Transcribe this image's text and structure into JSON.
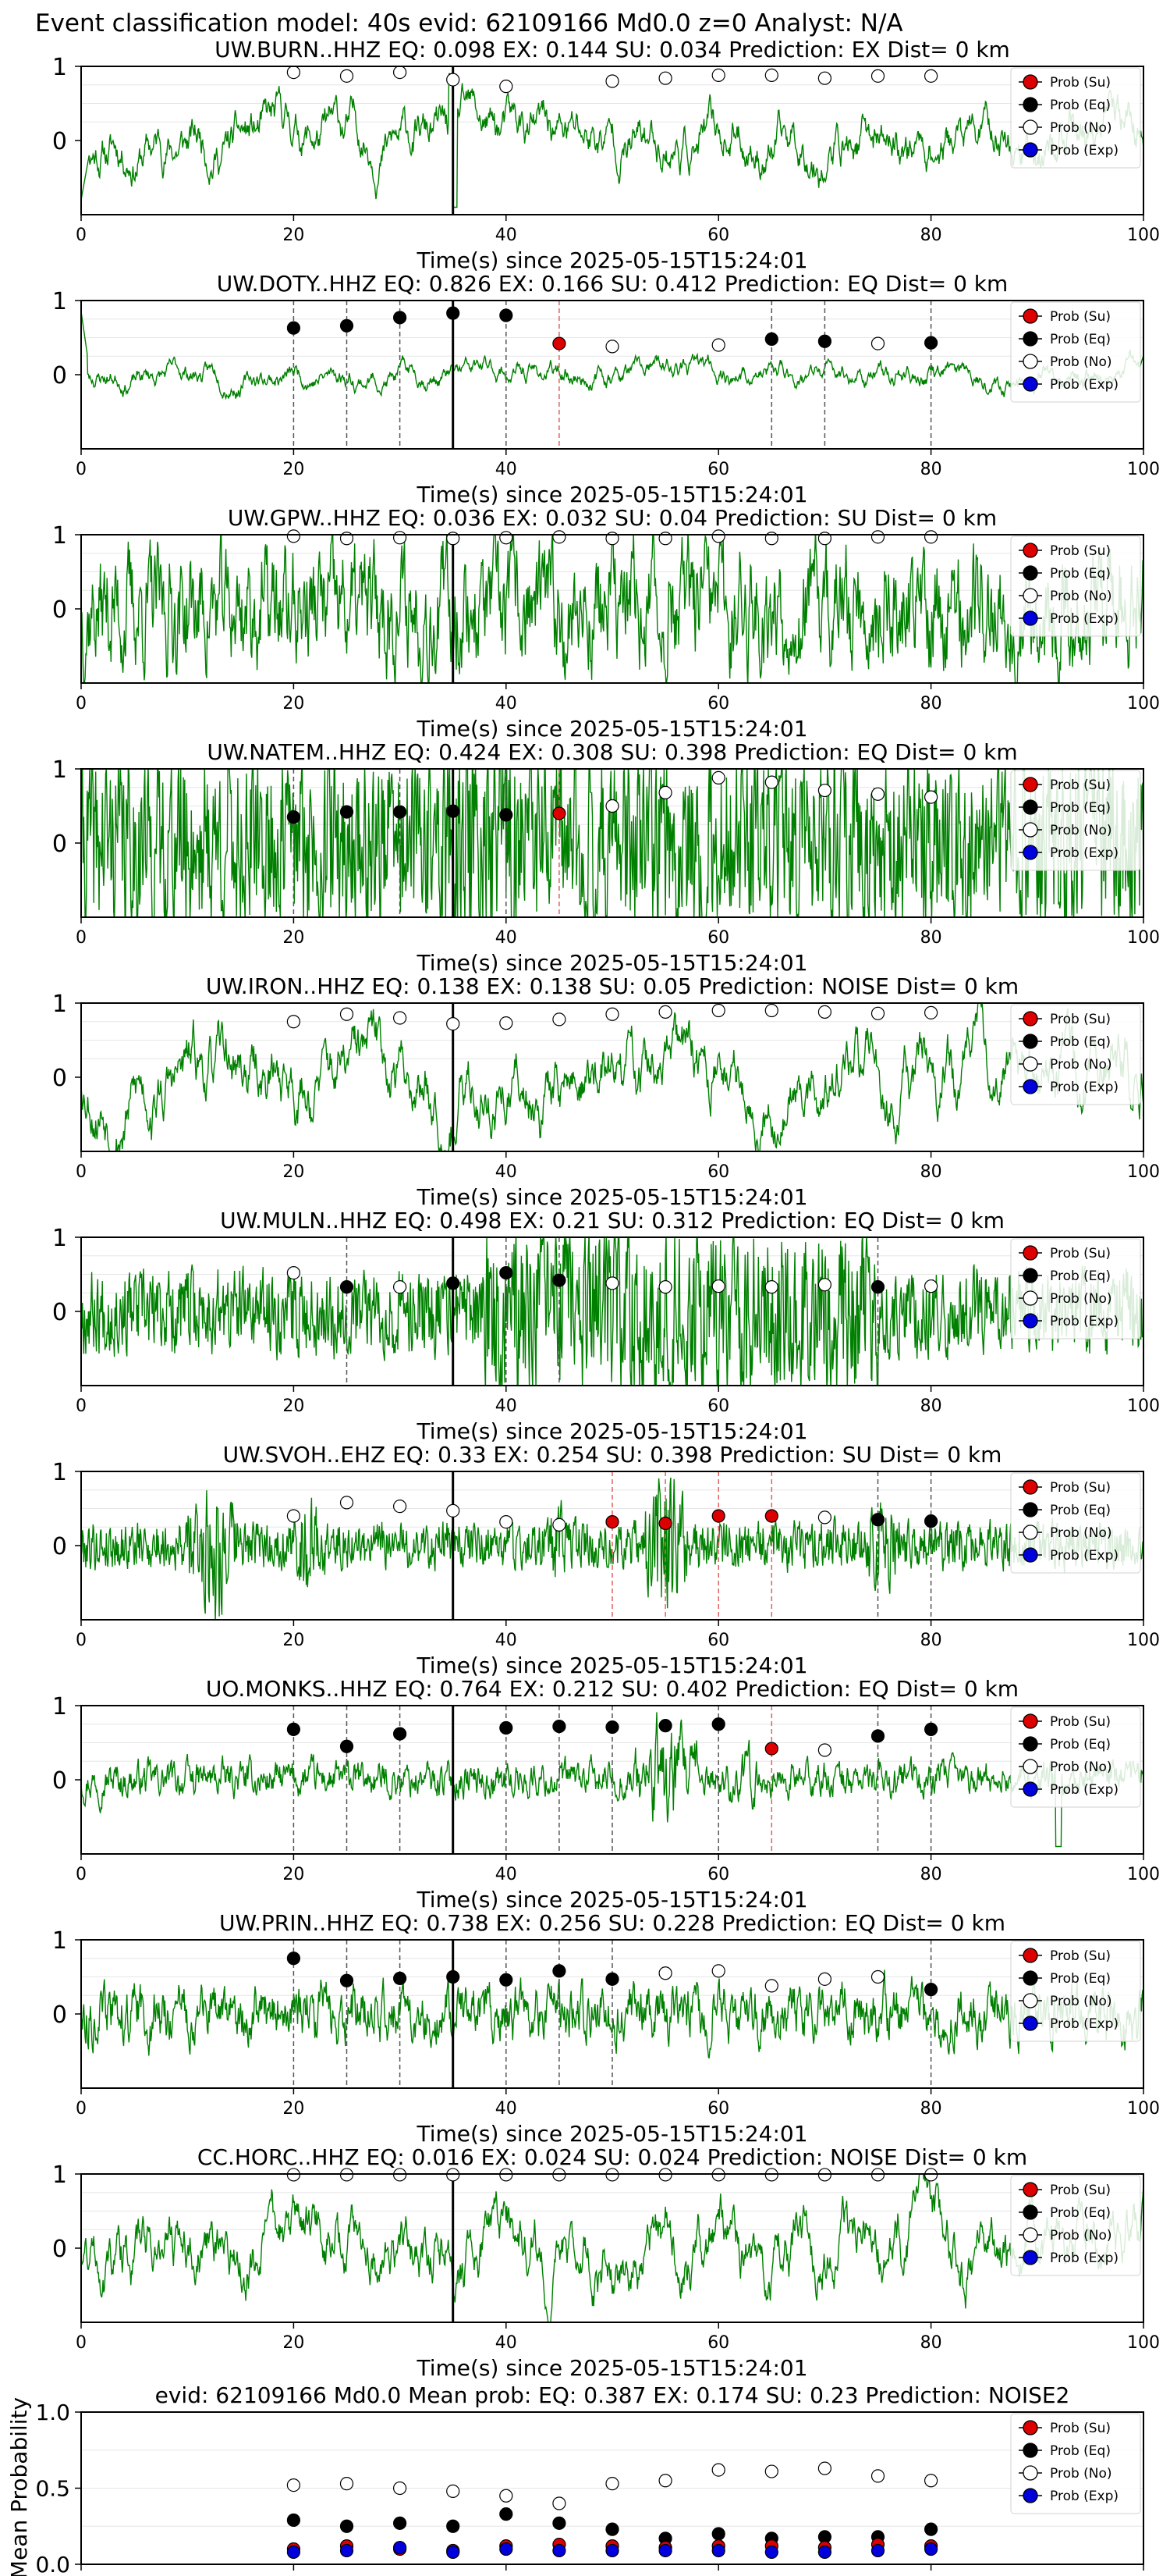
{
  "suptitle": "Event classification model: 40s evid: 62109166 Md0.0 z=0 Analyst: N/A",
  "common": {
    "xlabel": "Time(s) since 2025-05-15T15:24:01",
    "xlim": [
      0,
      100
    ],
    "xticks": [
      0,
      20,
      40,
      60,
      80,
      100
    ],
    "yticks": [
      0,
      1
    ],
    "ylim": [
      -1,
      1
    ],
    "origin_time": 35,
    "legend": {
      "placement": "top-right",
      "entries": [
        {
          "key": "su",
          "label": "Prob (Su)",
          "fill": "#dd0000"
        },
        {
          "key": "eq",
          "label": "Prob (Eq)",
          "fill": "#000000"
        },
        {
          "key": "no",
          "label": "Prob (No)",
          "fill": "#ffffff"
        },
        {
          "key": "exp",
          "label": "Prob (Exp)",
          "fill": "#0000dd"
        }
      ]
    },
    "colors": {
      "waveform": "#008000",
      "eq_line": "#555555",
      "su_line": "#e06060",
      "origin_line": "#000000"
    }
  },
  "window_times": [
    20,
    25,
    30,
    35,
    40,
    45,
    50,
    55,
    60,
    65,
    70,
    75,
    80
  ],
  "chart_data": [
    {
      "type": "line",
      "title": "UW.BURN..HHZ   EQ: 0.098  EX: 0.144  SU: 0.034   Prediction: EX    Dist= 0 km",
      "waveform": {
        "amp": 0.55,
        "style": "low",
        "seed": 11,
        "onset_spike": {
          "t": 35,
          "amp": 0.9
        },
        "initial_dip": true
      },
      "markers": [
        {
          "t": 20,
          "p": 0.92,
          "cls": "no"
        },
        {
          "t": 25,
          "p": 0.87,
          "cls": "no"
        },
        {
          "t": 30,
          "p": 0.92,
          "cls": "no"
        },
        {
          "t": 35,
          "p": 0.82,
          "cls": "no"
        },
        {
          "t": 40,
          "p": 0.73,
          "cls": "no"
        },
        {
          "t": 50,
          "p": 0.8,
          "cls": "no"
        },
        {
          "t": 55,
          "p": 0.84,
          "cls": "no"
        },
        {
          "t": 60,
          "p": 0.88,
          "cls": "no"
        },
        {
          "t": 65,
          "p": 0.88,
          "cls": "no"
        },
        {
          "t": 70,
          "p": 0.84,
          "cls": "no"
        },
        {
          "t": 75,
          "p": 0.87,
          "cls": "no"
        },
        {
          "t": 80,
          "p": 0.87,
          "cls": "no"
        }
      ],
      "eq_lines": [],
      "su_lines": []
    },
    {
      "type": "line",
      "title": "UW.DOTY..HHZ   EQ: 0.826  EX: 0.166  SU: 0.412   Prediction: EQ    Dist= 0 km",
      "waveform": {
        "amp": 0.25,
        "style": "low",
        "seed": 23,
        "start_spike": true
      },
      "markers": [
        {
          "t": 20,
          "p": 0.63,
          "cls": "eq"
        },
        {
          "t": 25,
          "p": 0.66,
          "cls": "eq"
        },
        {
          "t": 30,
          "p": 0.77,
          "cls": "eq"
        },
        {
          "t": 35,
          "p": 0.83,
          "cls": "eq"
        },
        {
          "t": 40,
          "p": 0.8,
          "cls": "eq"
        },
        {
          "t": 45,
          "p": 0.42,
          "cls": "su"
        },
        {
          "t": 50,
          "p": 0.38,
          "cls": "no"
        },
        {
          "t": 60,
          "p": 0.4,
          "cls": "no"
        },
        {
          "t": 65,
          "p": 0.48,
          "cls": "eq"
        },
        {
          "t": 70,
          "p": 0.45,
          "cls": "eq"
        },
        {
          "t": 75,
          "p": 0.42,
          "cls": "no"
        },
        {
          "t": 80,
          "p": 0.43,
          "cls": "eq"
        }
      ],
      "eq_lines": [
        20,
        25,
        30,
        40,
        65,
        70,
        80
      ],
      "su_lines": [
        45
      ]
    },
    {
      "type": "line",
      "title": "UW.GPW..HHZ   EQ: 0.036  EX: 0.032  SU: 0.04   Prediction: SU    Dist= 0 km",
      "waveform": {
        "amp": 0.85,
        "style": "mid",
        "seed": 37
      },
      "markers": [
        {
          "t": 20,
          "p": 0.98,
          "cls": "no"
        },
        {
          "t": 25,
          "p": 0.95,
          "cls": "no"
        },
        {
          "t": 30,
          "p": 0.96,
          "cls": "no"
        },
        {
          "t": 35,
          "p": 0.95,
          "cls": "no"
        },
        {
          "t": 40,
          "p": 0.96,
          "cls": "no"
        },
        {
          "t": 45,
          "p": 0.97,
          "cls": "no"
        },
        {
          "t": 50,
          "p": 0.95,
          "cls": "no"
        },
        {
          "t": 55,
          "p": 0.95,
          "cls": "no"
        },
        {
          "t": 60,
          "p": 0.98,
          "cls": "no"
        },
        {
          "t": 65,
          "p": 0.95,
          "cls": "no"
        },
        {
          "t": 70,
          "p": 0.95,
          "cls": "no"
        },
        {
          "t": 75,
          "p": 0.97,
          "cls": "no"
        },
        {
          "t": 80,
          "p": 0.97,
          "cls": "no"
        }
      ],
      "eq_lines": [],
      "su_lines": []
    },
    {
      "type": "line",
      "title": "UW.NATEM..HHZ   EQ: 0.424  EX: 0.308  SU: 0.398   Prediction: EQ    Dist= 0 km",
      "waveform": {
        "amp": 0.75,
        "style": "high",
        "seed": 41,
        "burst": {
          "t0": 34,
          "t1": 42,
          "gain": 1.3
        }
      },
      "markers": [
        {
          "t": 20,
          "p": 0.35,
          "cls": "eq"
        },
        {
          "t": 25,
          "p": 0.42,
          "cls": "eq"
        },
        {
          "t": 30,
          "p": 0.42,
          "cls": "eq"
        },
        {
          "t": 35,
          "p": 0.43,
          "cls": "eq"
        },
        {
          "t": 40,
          "p": 0.38,
          "cls": "eq"
        },
        {
          "t": 45,
          "p": 0.4,
          "cls": "su"
        },
        {
          "t": 50,
          "p": 0.5,
          "cls": "no"
        },
        {
          "t": 55,
          "p": 0.68,
          "cls": "no"
        },
        {
          "t": 60,
          "p": 0.88,
          "cls": "no"
        },
        {
          "t": 65,
          "p": 0.82,
          "cls": "no"
        },
        {
          "t": 70,
          "p": 0.71,
          "cls": "no"
        },
        {
          "t": 75,
          "p": 0.66,
          "cls": "no"
        },
        {
          "t": 80,
          "p": 0.62,
          "cls": "no"
        }
      ],
      "eq_lines": [
        20,
        30,
        40
      ],
      "su_lines": [
        45
      ]
    },
    {
      "type": "line",
      "title": "UW.IRON..HHZ   EQ: 0.138  EX: 0.138  SU: 0.05   Prediction: NOISE    Dist= 0 km",
      "waveform": {
        "amp": 0.8,
        "style": "low",
        "seed": 53
      },
      "markers": [
        {
          "t": 20,
          "p": 0.75,
          "cls": "no"
        },
        {
          "t": 25,
          "p": 0.85,
          "cls": "no"
        },
        {
          "t": 30,
          "p": 0.8,
          "cls": "no"
        },
        {
          "t": 35,
          "p": 0.72,
          "cls": "no"
        },
        {
          "t": 40,
          "p": 0.73,
          "cls": "no"
        },
        {
          "t": 45,
          "p": 0.78,
          "cls": "no"
        },
        {
          "t": 50,
          "p": 0.85,
          "cls": "no"
        },
        {
          "t": 55,
          "p": 0.88,
          "cls": "no"
        },
        {
          "t": 60,
          "p": 0.9,
          "cls": "no"
        },
        {
          "t": 65,
          "p": 0.9,
          "cls": "no"
        },
        {
          "t": 70,
          "p": 0.88,
          "cls": "no"
        },
        {
          "t": 75,
          "p": 0.86,
          "cls": "no"
        },
        {
          "t": 80,
          "p": 0.87,
          "cls": "no"
        }
      ],
      "eq_lines": [],
      "su_lines": []
    },
    {
      "type": "line",
      "title": "UW.MULN..HHZ   EQ: 0.498  EX: 0.21  SU: 0.312   Prediction: EQ    Dist= 0 km",
      "waveform": {
        "amp": 0.35,
        "style": "high",
        "seed": 67,
        "burst": {
          "t0": 38,
          "t1": 75,
          "gain": 2.0
        }
      },
      "markers": [
        {
          "t": 20,
          "p": 0.52,
          "cls": "no"
        },
        {
          "t": 25,
          "p": 0.33,
          "cls": "eq"
        },
        {
          "t": 30,
          "p": 0.33,
          "cls": "no"
        },
        {
          "t": 35,
          "p": 0.38,
          "cls": "eq"
        },
        {
          "t": 40,
          "p": 0.52,
          "cls": "eq"
        },
        {
          "t": 45,
          "p": 0.42,
          "cls": "eq"
        },
        {
          "t": 50,
          "p": 0.38,
          "cls": "no"
        },
        {
          "t": 55,
          "p": 0.33,
          "cls": "no"
        },
        {
          "t": 60,
          "p": 0.34,
          "cls": "no"
        },
        {
          "t": 65,
          "p": 0.33,
          "cls": "no"
        },
        {
          "t": 70,
          "p": 0.36,
          "cls": "no"
        },
        {
          "t": 75,
          "p": 0.33,
          "cls": "eq"
        },
        {
          "t": 80,
          "p": 0.34,
          "cls": "no"
        }
      ],
      "eq_lines": [
        25,
        40,
        45,
        75
      ],
      "su_lines": []
    },
    {
      "type": "line",
      "title": "UW.SVOH..EHZ   EQ: 0.33  EX: 0.254  SU: 0.398   Prediction: SU    Dist= 0 km",
      "waveform": {
        "amp": 0.2,
        "style": "high",
        "seed": 79,
        "bursts": [
          {
            "t0": 10,
            "t1": 15,
            "gain": 3.5
          },
          {
            "t0": 20,
            "t1": 23,
            "gain": 2.2
          },
          {
            "t0": 53,
            "t1": 57,
            "gain": 4.2
          },
          {
            "t0": 74,
            "t1": 77,
            "gain": 2.5
          },
          {
            "t0": 44,
            "t1": 46,
            "gain": 2.0
          }
        ]
      },
      "markers": [
        {
          "t": 20,
          "p": 0.4,
          "cls": "no"
        },
        {
          "t": 25,
          "p": 0.58,
          "cls": "no"
        },
        {
          "t": 30,
          "p": 0.53,
          "cls": "no"
        },
        {
          "t": 35,
          "p": 0.47,
          "cls": "no"
        },
        {
          "t": 40,
          "p": 0.32,
          "cls": "no"
        },
        {
          "t": 45,
          "p": 0.28,
          "cls": "no"
        },
        {
          "t": 50,
          "p": 0.32,
          "cls": "su"
        },
        {
          "t": 55,
          "p": 0.3,
          "cls": "su"
        },
        {
          "t": 60,
          "p": 0.4,
          "cls": "su"
        },
        {
          "t": 65,
          "p": 0.4,
          "cls": "su"
        },
        {
          "t": 70,
          "p": 0.38,
          "cls": "no"
        },
        {
          "t": 75,
          "p": 0.35,
          "cls": "eq"
        },
        {
          "t": 80,
          "p": 0.33,
          "cls": "eq"
        }
      ],
      "eq_lines": [
        75,
        80
      ],
      "su_lines": [
        50,
        55,
        60,
        65
      ]
    },
    {
      "type": "line",
      "title": "UO.MONKS..HHZ   EQ: 0.764  EX: 0.212  SU: 0.402   Prediction: EQ    Dist= 0 km",
      "waveform": {
        "amp": 0.25,
        "style": "mid",
        "seed": 97,
        "bursts": [
          {
            "t0": 52,
            "t1": 58,
            "gain": 3.8
          },
          {
            "t0": 61,
            "t1": 64,
            "gain": 1.6
          }
        ],
        "tail_dip": {
          "t": 92
        }
      },
      "markers": [
        {
          "t": 20,
          "p": 0.68,
          "cls": "eq"
        },
        {
          "t": 25,
          "p": 0.45,
          "cls": "eq"
        },
        {
          "t": 30,
          "p": 0.62,
          "cls": "eq"
        },
        {
          "t": 40,
          "p": 0.7,
          "cls": "eq"
        },
        {
          "t": 45,
          "p": 0.72,
          "cls": "eq"
        },
        {
          "t": 50,
          "p": 0.71,
          "cls": "eq"
        },
        {
          "t": 55,
          "p": 0.73,
          "cls": "eq"
        },
        {
          "t": 60,
          "p": 0.75,
          "cls": "eq"
        },
        {
          "t": 65,
          "p": 0.42,
          "cls": "su"
        },
        {
          "t": 70,
          "p": 0.4,
          "cls": "no"
        },
        {
          "t": 75,
          "p": 0.59,
          "cls": "eq"
        },
        {
          "t": 80,
          "p": 0.68,
          "cls": "eq"
        }
      ],
      "eq_lines": [
        20,
        25,
        30,
        40,
        45,
        50,
        60,
        75,
        80
      ],
      "su_lines": [
        65
      ]
    },
    {
      "type": "line",
      "title": "UW.PRIN..HHZ   EQ: 0.738  EX: 0.256  SU: 0.228   Prediction: EQ    Dist= 0 km",
      "waveform": {
        "amp": 0.4,
        "style": "mid",
        "seed": 113
      },
      "markers": [
        {
          "t": 20,
          "p": 0.75,
          "cls": "eq"
        },
        {
          "t": 25,
          "p": 0.45,
          "cls": "eq"
        },
        {
          "t": 30,
          "p": 0.48,
          "cls": "eq"
        },
        {
          "t": 35,
          "p": 0.5,
          "cls": "eq"
        },
        {
          "t": 40,
          "p": 0.46,
          "cls": "eq"
        },
        {
          "t": 45,
          "p": 0.58,
          "cls": "eq"
        },
        {
          "t": 50,
          "p": 0.47,
          "cls": "eq"
        },
        {
          "t": 55,
          "p": 0.55,
          "cls": "no"
        },
        {
          "t": 60,
          "p": 0.58,
          "cls": "no"
        },
        {
          "t": 65,
          "p": 0.38,
          "cls": "no"
        },
        {
          "t": 70,
          "p": 0.47,
          "cls": "no"
        },
        {
          "t": 75,
          "p": 0.5,
          "cls": "no"
        },
        {
          "t": 80,
          "p": 0.33,
          "cls": "eq"
        }
      ],
      "eq_lines": [
        20,
        25,
        30,
        40,
        45,
        50,
        80
      ],
      "su_lines": []
    },
    {
      "type": "line",
      "title": "CC.HORC..HHZ   EQ: 0.016  EX: 0.024  SU: 0.024   Prediction: NOISE    Dist= 0 km",
      "waveform": {
        "amp": 0.75,
        "style": "low",
        "seed": 131
      },
      "markers": [
        {
          "t": 20,
          "p": 0.99,
          "cls": "no"
        },
        {
          "t": 25,
          "p": 0.99,
          "cls": "no"
        },
        {
          "t": 30,
          "p": 0.99,
          "cls": "no"
        },
        {
          "t": 35,
          "p": 0.99,
          "cls": "no"
        },
        {
          "t": 40,
          "p": 0.99,
          "cls": "no"
        },
        {
          "t": 45,
          "p": 0.99,
          "cls": "no"
        },
        {
          "t": 50,
          "p": 0.99,
          "cls": "no"
        },
        {
          "t": 55,
          "p": 0.99,
          "cls": "no"
        },
        {
          "t": 60,
          "p": 0.99,
          "cls": "no"
        },
        {
          "t": 65,
          "p": 0.99,
          "cls": "no"
        },
        {
          "t": 70,
          "p": 0.99,
          "cls": "no"
        },
        {
          "t": 75,
          "p": 0.99,
          "cls": "no"
        },
        {
          "t": 80,
          "p": 0.99,
          "cls": "no"
        }
      ],
      "eq_lines": [],
      "su_lines": []
    },
    {
      "type": "scatter",
      "title": "evid: 62109166  Md0.0   Mean prob:   EQ: 0.387  EX: 0.174  SU: 0.23   Prediction: NOISE2",
      "ylabel": "Mean Probability",
      "xlim": [
        0,
        100
      ],
      "ylim": [
        0,
        1.0
      ],
      "yticks": [
        0.0,
        0.5,
        1.0
      ],
      "ytick_labels": [
        "0.0",
        "0.5",
        "1.0"
      ],
      "x": [
        20,
        25,
        30,
        35,
        40,
        45,
        50,
        55,
        60,
        65,
        70,
        75,
        80
      ],
      "series": [
        {
          "key": "no",
          "values": [
            0.52,
            0.53,
            0.5,
            0.48,
            0.45,
            0.4,
            0.53,
            0.55,
            0.62,
            0.61,
            0.63,
            0.58,
            0.55
          ]
        },
        {
          "key": "eq",
          "values": [
            0.29,
            0.25,
            0.27,
            0.25,
            0.33,
            0.27,
            0.23,
            0.17,
            0.2,
            0.17,
            0.18,
            0.18,
            0.23
          ]
        },
        {
          "key": "su",
          "values": [
            0.1,
            0.12,
            0.1,
            0.09,
            0.12,
            0.13,
            0.12,
            0.11,
            0.12,
            0.12,
            0.11,
            0.13,
            0.12
          ]
        },
        {
          "key": "exp",
          "values": [
            0.08,
            0.09,
            0.11,
            0.08,
            0.1,
            0.09,
            0.09,
            0.09,
            0.09,
            0.08,
            0.08,
            0.09,
            0.1
          ]
        }
      ]
    }
  ]
}
